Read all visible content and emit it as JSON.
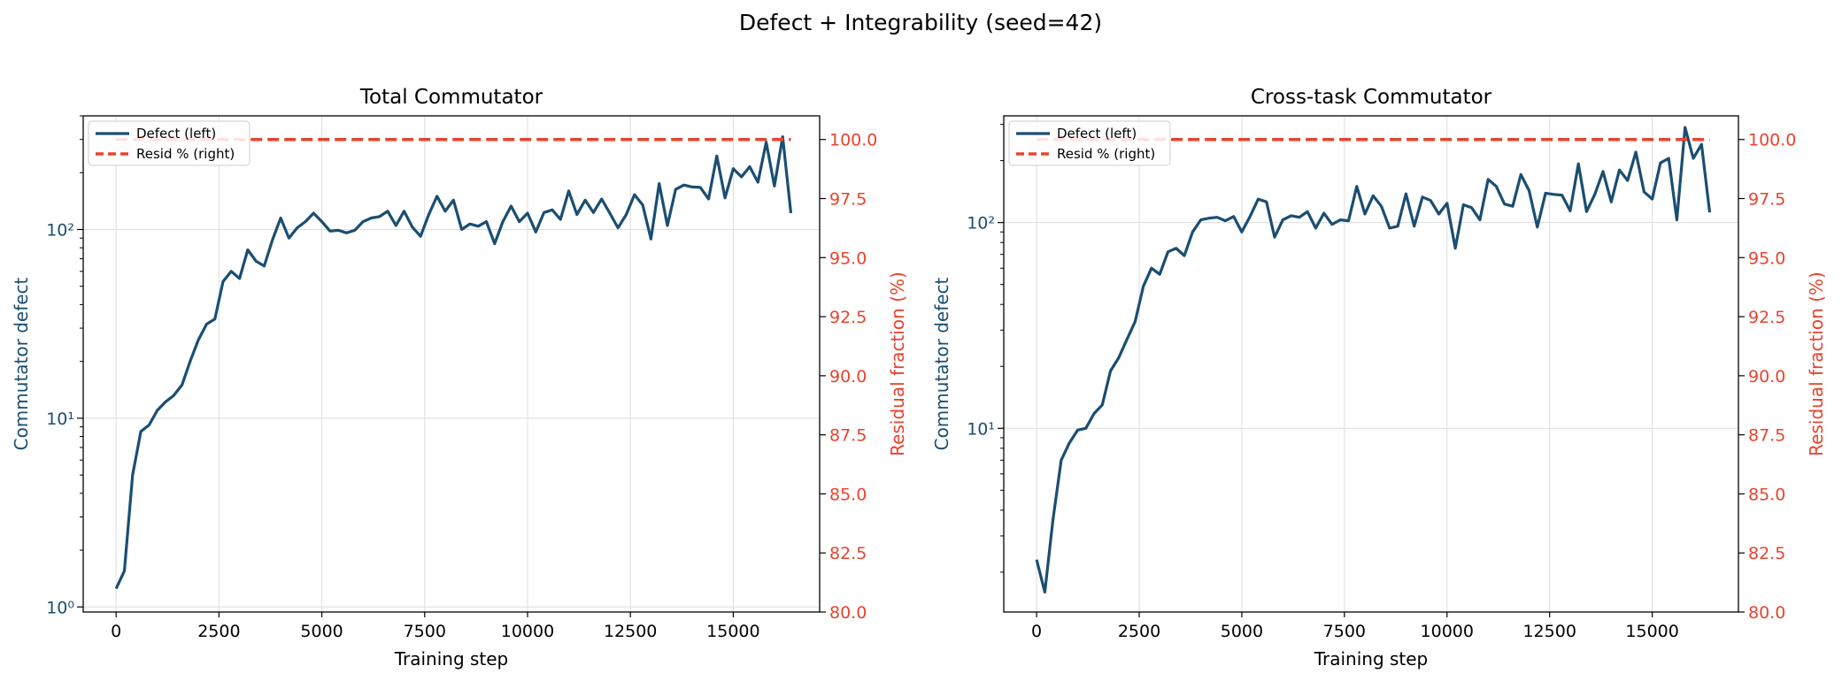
{
  "figure": {
    "title": "Defect + Integrability (seed=42)"
  },
  "colors": {
    "defect": "#1a4e72",
    "residual": "#e8432e",
    "grid": "#dddddd",
    "axis": "#000000"
  },
  "chart_data": [
    {
      "type": "line",
      "title": "Total Commutator",
      "xlabel": "Training step",
      "ylabel_left": "Commutator defect",
      "ylabel_right": "Residual fraction (%)",
      "xlim": [
        -800,
        17100
      ],
      "ylim_left_log": [
        0.94,
        400
      ],
      "ylim_right": [
        80,
        101
      ],
      "xticks": [
        0,
        2500,
        5000,
        7500,
        10000,
        12500,
        15000
      ],
      "xtick_labels": [
        "0",
        "2500",
        "5000",
        "7500",
        "10000",
        "12500",
        "15000"
      ],
      "left_major_ticks": [
        1,
        10,
        100
      ],
      "left_tick_labels": [
        "10⁰",
        "10¹",
        "10²"
      ],
      "right_ticks": [
        80.0,
        82.5,
        85.0,
        87.5,
        90.0,
        92.5,
        95.0,
        97.5,
        100.0
      ],
      "right_tick_labels": [
        "80.0",
        "82.5",
        "85.0",
        "87.5",
        "90.0",
        "92.5",
        "95.0",
        "97.5",
        "100.0"
      ],
      "legend": [
        "Defect (left)",
        "Resid % (right)"
      ],
      "legend_position": "top-left",
      "series": [
        {
          "name": "Defect (left)",
          "axis": "left",
          "x": [
            0,
            200,
            400,
            600,
            800,
            1000,
            1200,
            1400,
            1600,
            1800,
            2000,
            2200,
            2400,
            2600,
            2800,
            3000,
            3200,
            3400,
            3600,
            3800,
            4000,
            4200,
            4400,
            4600,
            4800,
            5000,
            5200,
            5400,
            5600,
            5800,
            6000,
            6200,
            6400,
            6600,
            6800,
            7000,
            7200,
            7400,
            7600,
            7800,
            8000,
            8200,
            8400,
            8600,
            8800,
            9000,
            9200,
            9400,
            9600,
            9800,
            10000,
            10200,
            10400,
            10600,
            10800,
            11000,
            11200,
            11400,
            11600,
            11800,
            12000,
            12200,
            12400,
            12600,
            12800,
            13000,
            13200,
            13400,
            13600,
            13800,
            14000,
            14200,
            14400,
            14600,
            14800,
            15000,
            15200,
            15400,
            15600,
            15800,
            16000,
            16200,
            16400
          ],
          "values": [
            1.25,
            1.55,
            5.0,
            8.5,
            9.2,
            11.0,
            12.2,
            13.2,
            15.0,
            20.0,
            26.0,
            31.5,
            33.5,
            53.0,
            60.0,
            55.0,
            78.0,
            68.0,
            64.0,
            88.0,
            115.0,
            90.0,
            102.0,
            110.0,
            122.0,
            110.0,
            98.0,
            99.0,
            96.0,
            99.0,
            110.0,
            115.0,
            117.0,
            125.0,
            105.0,
            125.0,
            103.0,
            92.0,
            120.0,
            150.0,
            125.0,
            143.0,
            100.0,
            107.0,
            104.0,
            110.0,
            84.0,
            110.0,
            133.0,
            110.0,
            122.0,
            97.0,
            123.0,
            127.0,
            113.0,
            160.0,
            120.0,
            143.0,
            123.0,
            145.0,
            122.0,
            102.0,
            120.0,
            153.0,
            135.0,
            89.0,
            175.0,
            105.0,
            163.0,
            172.0,
            168.0,
            167.0,
            145.0,
            245.0,
            147.0,
            210.0,
            190.0,
            215.0,
            178.0,
            290.0,
            170.0,
            310.0,
            122.0
          ]
        },
        {
          "name": "Resid % (right)",
          "axis": "right",
          "style": "dashed",
          "x": [
            0,
            16400
          ],
          "values": [
            100.0,
            100.0
          ]
        }
      ]
    },
    {
      "type": "line",
      "title": "Cross-task Commutator",
      "xlabel": "Training step",
      "ylabel_left": "Commutator defect",
      "ylabel_right": "Residual fraction (%)",
      "xlim": [
        -800,
        17100
      ],
      "ylim_left_log": [
        1.28,
        330
      ],
      "ylim_right": [
        80,
        101
      ],
      "xticks": [
        0,
        2500,
        5000,
        7500,
        10000,
        12500,
        15000
      ],
      "xtick_labels": [
        "0",
        "2500",
        "5000",
        "7500",
        "10000",
        "12500",
        "15000"
      ],
      "left_major_ticks": [
        10,
        100
      ],
      "left_tick_labels": [
        "10¹",
        "10²"
      ],
      "right_ticks": [
        80.0,
        82.5,
        85.0,
        87.5,
        90.0,
        92.5,
        95.0,
        97.5,
        100.0
      ],
      "right_tick_labels": [
        "80.0",
        "82.5",
        "85.0",
        "87.5",
        "90.0",
        "92.5",
        "95.0",
        "97.5",
        "100.0"
      ],
      "legend": [
        "Defect (left)",
        "Resid % (right)"
      ],
      "legend_position": "top-left",
      "series": [
        {
          "name": "Defect (left)",
          "axis": "left",
          "x": [
            0,
            200,
            400,
            600,
            800,
            1000,
            1200,
            1400,
            1600,
            1800,
            2000,
            2200,
            2400,
            2600,
            2800,
            3000,
            3200,
            3400,
            3600,
            3800,
            4000,
            4200,
            4400,
            4600,
            4800,
            5000,
            5200,
            5400,
            5600,
            5800,
            6000,
            6200,
            6400,
            6600,
            6800,
            7000,
            7200,
            7400,
            7600,
            7800,
            8000,
            8200,
            8400,
            8600,
            8800,
            9000,
            9200,
            9400,
            9600,
            9800,
            10000,
            10200,
            10400,
            10600,
            10800,
            11000,
            11200,
            11400,
            11600,
            11800,
            12000,
            12200,
            12400,
            12600,
            12800,
            13000,
            13200,
            13400,
            13600,
            13800,
            14000,
            14200,
            14400,
            14600,
            14800,
            15000,
            15200,
            15400,
            15600,
            15800,
            16000,
            16200,
            16400
          ],
          "values": [
            2.3,
            1.6,
            3.6,
            7.0,
            8.5,
            9.8,
            10.0,
            11.8,
            13.0,
            19.0,
            22.0,
            27.0,
            33.0,
            49.0,
            60.0,
            56.0,
            72.0,
            75.0,
            69.0,
            90.0,
            103.0,
            105.0,
            106.0,
            102.0,
            107.0,
            90.0,
            107.0,
            130.0,
            126.0,
            85.0,
            103.0,
            108.0,
            106.0,
            113.0,
            94.0,
            111.0,
            98.0,
            103.0,
            102.0,
            150.0,
            110.0,
            135.0,
            120.0,
            94.0,
            96.0,
            138.0,
            96.0,
            133.0,
            128.0,
            110.0,
            124.0,
            75.0,
            122.0,
            118.0,
            103.0,
            162.0,
            150.0,
            123.0,
            120.0,
            171.0,
            143.0,
            95.0,
            139.0,
            137.0,
            136.0,
            114.0,
            193.0,
            113.0,
            137.0,
            177.0,
            126.0,
            180.0,
            160.0,
            220.0,
            141.0,
            130.0,
            195.0,
            205.0,
            103.0,
            290.0,
            205.0,
            240.0,
            112.0
          ]
        },
        {
          "name": "Resid % (right)",
          "axis": "right",
          "style": "dashed",
          "x": [
            0,
            16400
          ],
          "values": [
            100.0,
            100.0
          ]
        }
      ]
    }
  ]
}
